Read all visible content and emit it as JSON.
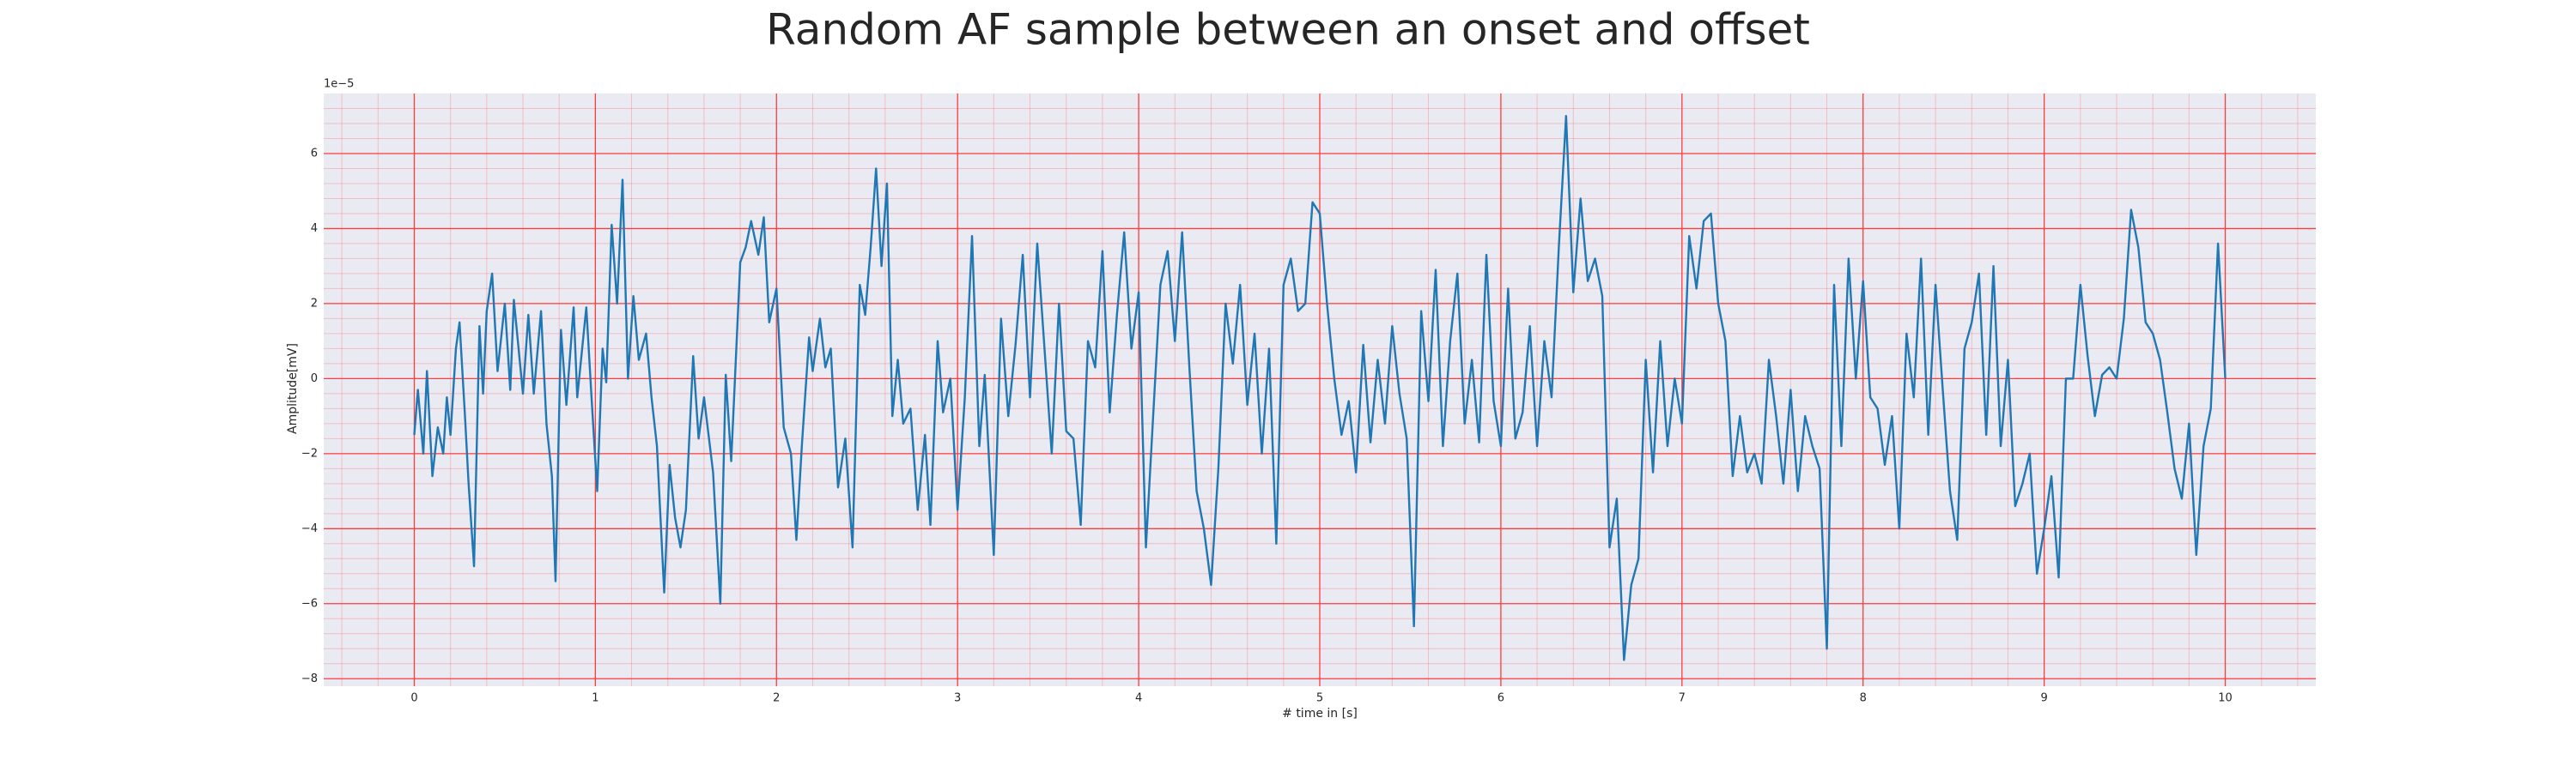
{
  "chart_data": {
    "type": "line",
    "title": "Random AF sample between an onset and offset",
    "xlabel": "# time in [s]",
    "ylabel": "Amplitude[mV]",
    "y_offset_label": "1e−5",
    "color": "#1f77b4",
    "grid": true,
    "grid_color": "#ff3b3b",
    "minor_grid": true,
    "background": "#eaeaf2",
    "xlim": [
      -0.5,
      10.5
    ],
    "ylim": [
      -8.2,
      7.6
    ],
    "xticks": [
      0,
      1,
      2,
      3,
      4,
      5,
      6,
      7,
      8,
      9,
      10
    ],
    "yticks": [
      {
        "value": -8,
        "label": "−8"
      },
      {
        "value": -6,
        "label": "−6"
      },
      {
        "value": -4,
        "label": "−4"
      },
      {
        "value": -2,
        "label": "−2"
      },
      0,
      2,
      4,
      6
    ],
    "x": [
      0.0,
      0.02,
      0.05,
      0.07,
      0.1,
      0.13,
      0.16,
      0.18,
      0.2,
      0.23,
      0.25,
      0.28,
      0.3,
      0.33,
      0.36,
      0.38,
      0.4,
      0.43,
      0.46,
      0.5,
      0.53,
      0.55,
      0.6,
      0.63,
      0.66,
      0.7,
      0.73,
      0.76,
      0.78,
      0.81,
      0.84,
      0.88,
      0.9,
      0.95,
      0.98,
      1.01,
      1.04,
      1.06,
      1.09,
      1.12,
      1.15,
      1.18,
      1.21,
      1.24,
      1.28,
      1.31,
      1.34,
      1.38,
      1.41,
      1.44,
      1.47,
      1.5,
      1.54,
      1.57,
      1.6,
      1.65,
      1.69,
      1.72,
      1.75,
      1.8,
      1.83,
      1.86,
      1.9,
      1.93,
      1.96,
      2.0,
      2.04,
      2.08,
      2.11,
      2.14,
      2.18,
      2.2,
      2.24,
      2.27,
      2.3,
      2.34,
      2.38,
      2.42,
      2.46,
      2.49,
      2.52,
      2.55,
      2.58,
      2.61,
      2.64,
      2.67,
      2.7,
      2.74,
      2.78,
      2.82,
      2.85,
      2.89,
      2.92,
      2.96,
      3.0,
      3.04,
      3.08,
      3.12,
      3.15,
      3.2,
      3.24,
      3.28,
      3.32,
      3.36,
      3.4,
      3.44,
      3.48,
      3.52,
      3.56,
      3.6,
      3.64,
      3.68,
      3.72,
      3.76,
      3.8,
      3.84,
      3.88,
      3.92,
      3.96,
      4.0,
      4.04,
      4.08,
      4.12,
      4.16,
      4.2,
      4.24,
      4.28,
      4.32,
      4.36,
      4.4,
      4.44,
      4.48,
      4.52,
      4.56,
      4.6,
      4.64,
      4.68,
      4.72,
      4.76,
      4.8,
      4.84,
      4.88,
      4.92,
      4.96,
      5.0,
      5.04,
      5.08,
      5.12,
      5.16,
      5.2,
      5.24,
      5.28,
      5.32,
      5.36,
      5.4,
      5.44,
      5.48,
      5.52,
      5.56,
      5.6,
      5.64,
      5.68,
      5.72,
      5.76,
      5.8,
      5.84,
      5.88,
      5.92,
      5.96,
      6.0,
      6.04,
      6.08,
      6.12,
      6.16,
      6.2,
      6.24,
      6.28,
      6.32,
      6.36,
      6.4,
      6.44,
      6.48,
      6.52,
      6.56,
      6.6,
      6.64,
      6.68,
      6.72,
      6.76,
      6.8,
      6.84,
      6.88,
      6.92,
      6.96,
      7.0,
      7.04,
      7.08,
      7.12,
      7.16,
      7.2,
      7.24,
      7.28,
      7.32,
      7.36,
      7.4,
      7.44,
      7.48,
      7.52,
      7.56,
      7.6,
      7.64,
      7.68,
      7.72,
      7.76,
      7.8,
      7.84,
      7.88,
      7.92,
      7.96,
      8.0,
      8.04,
      8.08,
      8.12,
      8.16,
      8.2,
      8.24,
      8.28,
      8.32,
      8.36,
      8.4,
      8.44,
      8.48,
      8.52,
      8.56,
      8.6,
      8.64,
      8.68,
      8.72,
      8.76,
      8.8,
      8.84,
      8.88,
      8.92,
      8.96,
      9.0,
      9.04,
      9.08,
      9.12,
      9.16,
      9.2,
      9.24,
      9.28,
      9.32,
      9.36,
      9.4,
      9.44,
      9.48,
      9.52,
      9.56,
      9.6,
      9.64,
      9.68,
      9.72,
      9.76,
      9.8,
      9.84,
      9.88,
      9.92,
      9.96,
      10.0
    ],
    "values": [
      -1.5,
      -0.3,
      -2.0,
      0.2,
      -2.6,
      -1.3,
      -2.0,
      -0.5,
      -1.5,
      0.8,
      1.5,
      -1.0,
      -2.8,
      -5.0,
      1.4,
      -0.4,
      1.8,
      2.8,
      0.2,
      2.0,
      -0.3,
      2.1,
      -0.4,
      1.7,
      -0.4,
      1.8,
      -1.2,
      -2.6,
      -5.4,
      1.3,
      -0.7,
      1.9,
      -0.5,
      1.9,
      -0.6,
      -3.0,
      0.8,
      -0.1,
      4.1,
      2.0,
      5.3,
      0.0,
      2.2,
      0.5,
      1.2,
      -0.5,
      -1.8,
      -5.7,
      -2.3,
      -3.7,
      -4.5,
      -3.5,
      0.6,
      -1.6,
      -0.5,
      -2.5,
      -6.0,
      0.1,
      -2.2,
      3.1,
      3.5,
      4.2,
      3.3,
      4.3,
      1.5,
      2.4,
      -1.3,
      -2.0,
      -4.3,
      -1.8,
      1.1,
      0.2,
      1.6,
      0.3,
      0.8,
      -2.9,
      -1.6,
      -4.5,
      2.5,
      1.7,
      3.5,
      5.6,
      3.0,
      5.2,
      -1.0,
      0.5,
      -1.2,
      -0.8,
      -3.5,
      -1.5,
      -3.9,
      1.0,
      -0.9,
      0.0,
      -3.5,
      -0.5,
      3.8,
      -1.8,
      0.1,
      -4.7,
      1.6,
      -1.0,
      0.9,
      3.3,
      -0.5,
      3.6,
      0.8,
      -2.0,
      2.0,
      -1.4,
      -1.6,
      -3.9,
      1.0,
      0.3,
      3.4,
      -0.9,
      1.7,
      3.9,
      0.8,
      2.3,
      -4.5,
      -1.0,
      2.5,
      3.4,
      1.0,
      3.9,
      0.3,
      -3.0,
      -4.0,
      -5.5,
      -2.4,
      2.0,
      0.4,
      2.5,
      -0.7,
      1.2,
      -2.0,
      0.8,
      -4.4,
      2.5,
      3.2,
      1.8,
      2.0,
      4.7,
      4.4,
      2.0,
      0.0,
      -1.5,
      -0.6,
      -2.5,
      0.9,
      -1.7,
      0.5,
      -1.2,
      1.4,
      -0.4,
      -1.6,
      -6.6,
      1.8,
      -0.6,
      2.9,
      -1.8,
      1.0,
      2.8,
      -1.2,
      0.5,
      -1.7,
      3.3,
      -0.6,
      -1.8,
      2.4,
      -1.6,
      -0.9,
      1.4,
      -1.8,
      1.0,
      -0.5,
      3.5,
      7.0,
      2.3,
      4.8,
      2.6,
      3.2,
      2.2,
      -4.5,
      -3.2,
      -7.5,
      -5.5,
      -4.8,
      0.5,
      -2.5,
      1.0,
      -1.8,
      0.0,
      -1.2,
      3.8,
      2.4,
      4.2,
      4.4,
      2.0,
      1.0,
      -2.6,
      -1.0,
      -2.5,
      -2.0,
      -2.8,
      0.5,
      -1.0,
      -2.8,
      -0.3,
      -3.0,
      -1.0,
      -1.8,
      -2.4,
      -7.2,
      2.5,
      -1.8,
      3.2,
      0.0,
      2.6,
      -0.5,
      -0.8,
      -2.3,
      -1.0,
      -4.0,
      1.2,
      -0.5,
      3.2,
      -1.5,
      2.5,
      -0.3,
      -3.0,
      -4.3,
      0.8,
      1.5,
      2.8,
      -1.5,
      3.0,
      -1.8,
      0.5,
      -3.4,
      -2.8,
      -2.0,
      -5.2,
      -4.0,
      -2.6,
      -5.3,
      0.0,
      0.0,
      2.5,
      0.6,
      -1.0,
      0.1,
      0.3,
      0.0,
      1.6,
      4.5,
      3.5,
      1.5,
      1.2,
      0.5,
      -0.9,
      -2.4,
      -3.2,
      -1.2,
      -4.7,
      -1.8,
      -0.8,
      3.6,
      0.0
    ]
  }
}
